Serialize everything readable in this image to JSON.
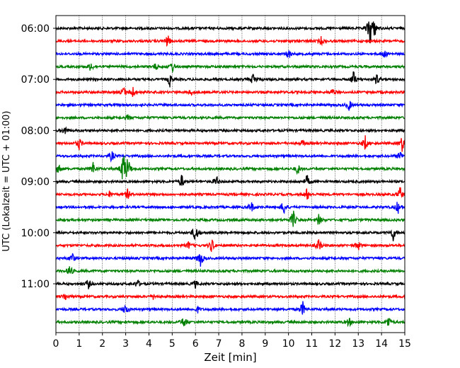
{
  "chart_data": {
    "type": "line",
    "title": "",
    "xlabel": "Zeit  [min]",
    "ylabel": "UTC (Lokalzeit = UTC + 01:00)",
    "xlim": [
      0,
      15
    ],
    "x_ticks": [
      "0",
      "1",
      "2",
      "3",
      "4",
      "5",
      "6",
      "7",
      "8",
      "9",
      "10",
      "11",
      "12",
      "13",
      "14",
      "15"
    ],
    "y_ticks": [
      "06:00",
      "07:00",
      "08:00",
      "09:00",
      "10:00",
      "11:00"
    ],
    "x_grid": true,
    "trace_interval_minutes": 15,
    "colors": [
      "#000000",
      "#ff0000",
      "#0000ff",
      "#008000"
    ],
    "traces": [
      {
        "start": "06:00",
        "color": "#000000",
        "events": [
          [
            13.5,
            1.0
          ],
          [
            13.7,
            0.4
          ]
        ]
      },
      {
        "start": "06:15",
        "color": "#ff0000",
        "events": [
          [
            4.8,
            0.35
          ],
          [
            11.4,
            0.2
          ]
        ]
      },
      {
        "start": "06:30",
        "color": "#0000ff",
        "events": [
          [
            10.0,
            0.3
          ],
          [
            14.1,
            0.25
          ]
        ]
      },
      {
        "start": "06:45",
        "color": "#008000",
        "events": [
          [
            1.5,
            0.25
          ],
          [
            4.3,
            0.2
          ],
          [
            5.0,
            0.3
          ]
        ]
      },
      {
        "start": "07:00",
        "color": "#000000",
        "events": [
          [
            4.9,
            0.35
          ],
          [
            8.5,
            0.4
          ],
          [
            12.8,
            0.45
          ],
          [
            13.8,
            0.3
          ]
        ]
      },
      {
        "start": "07:15",
        "color": "#ff0000",
        "events": [
          [
            2.9,
            0.3
          ],
          [
            3.3,
            0.3
          ],
          [
            5.8,
            0.15
          ],
          [
            11.9,
            0.2
          ]
        ]
      },
      {
        "start": "07:30",
        "color": "#0000ff",
        "events": [
          [
            12.6,
            0.3
          ]
        ]
      },
      {
        "start": "07:45",
        "color": "#008000",
        "events": [
          [
            3.1,
            0.15
          ]
        ]
      },
      {
        "start": "08:00",
        "color": "#000000",
        "events": [
          [
            0.4,
            0.25
          ]
        ]
      },
      {
        "start": "08:15",
        "color": "#ff0000",
        "events": [
          [
            1.0,
            0.3
          ],
          [
            10.6,
            0.15
          ],
          [
            13.3,
            0.4
          ],
          [
            14.9,
            0.5
          ]
        ]
      },
      {
        "start": "08:30",
        "color": "#0000ff",
        "events": [
          [
            2.4,
            0.3
          ],
          [
            14.8,
            0.3
          ]
        ]
      },
      {
        "start": "08:45",
        "color": "#008000",
        "events": [
          [
            0.1,
            0.4
          ],
          [
            1.6,
            0.35
          ],
          [
            2.9,
            1.0
          ],
          [
            3.1,
            0.6
          ],
          [
            10.4,
            0.3
          ]
        ]
      },
      {
        "start": "09:00",
        "color": "#000000",
        "events": [
          [
            5.4,
            0.4
          ],
          [
            6.9,
            0.3
          ],
          [
            10.8,
            0.35
          ]
        ]
      },
      {
        "start": "09:15",
        "color": "#ff0000",
        "events": [
          [
            2.3,
            0.15
          ],
          [
            3.1,
            0.3
          ],
          [
            10.8,
            0.35
          ],
          [
            14.8,
            0.4
          ]
        ]
      },
      {
        "start": "09:30",
        "color": "#0000ff",
        "events": [
          [
            8.4,
            0.3
          ],
          [
            9.8,
            0.45
          ],
          [
            14.7,
            0.35
          ]
        ]
      },
      {
        "start": "09:45",
        "color": "#008000",
        "events": [
          [
            10.2,
            0.55
          ],
          [
            11.3,
            0.3
          ]
        ]
      },
      {
        "start": "10:00",
        "color": "#000000",
        "events": [
          [
            6.0,
            0.6
          ],
          [
            14.5,
            0.4
          ]
        ]
      },
      {
        "start": "10:15",
        "color": "#ff0000",
        "events": [
          [
            5.7,
            0.2
          ],
          [
            6.7,
            0.4
          ],
          [
            11.3,
            0.35
          ],
          [
            13.0,
            0.25
          ]
        ]
      },
      {
        "start": "10:30",
        "color": "#0000ff",
        "events": [
          [
            0.7,
            0.3
          ],
          [
            6.2,
            0.55
          ]
        ]
      },
      {
        "start": "10:45",
        "color": "#008000",
        "events": [
          [
            0.6,
            0.35
          ]
        ]
      },
      {
        "start": "11:00",
        "color": "#000000",
        "events": [
          [
            1.4,
            0.25
          ],
          [
            3.5,
            0.25
          ],
          [
            6.0,
            0.2
          ]
        ]
      },
      {
        "start": "11:15",
        "color": "#ff0000",
        "events": [
          [
            0.4,
            0.2
          ],
          [
            4.2,
            0.15
          ]
        ]
      },
      {
        "start": "11:30",
        "color": "#0000ff",
        "events": [
          [
            3.0,
            0.35
          ],
          [
            6.1,
            0.15
          ],
          [
            10.6,
            0.45
          ]
        ]
      },
      {
        "start": "11:45",
        "color": "#008000",
        "events": [
          [
            5.5,
            0.35
          ],
          [
            12.6,
            0.25
          ],
          [
            14.3,
            0.35
          ]
        ]
      }
    ]
  }
}
